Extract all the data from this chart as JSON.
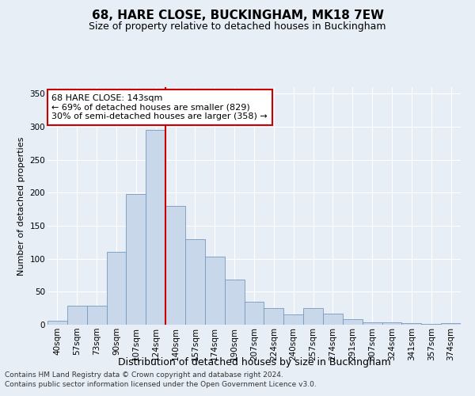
{
  "title1": "68, HARE CLOSE, BUCKINGHAM, MK18 7EW",
  "title2": "Size of property relative to detached houses in Buckingham",
  "xlabel": "Distribution of detached houses by size in Buckingham",
  "ylabel": "Number of detached properties",
  "categories": [
    "40sqm",
    "57sqm",
    "73sqm",
    "90sqm",
    "107sqm",
    "124sqm",
    "140sqm",
    "157sqm",
    "174sqm",
    "190sqm",
    "207sqm",
    "224sqm",
    "240sqm",
    "257sqm",
    "274sqm",
    "291sqm",
    "307sqm",
    "324sqm",
    "341sqm",
    "357sqm",
    "374sqm"
  ],
  "values": [
    6,
    29,
    29,
    110,
    198,
    295,
    180,
    130,
    103,
    68,
    35,
    25,
    16,
    25,
    17,
    8,
    4,
    4,
    3,
    1,
    2
  ],
  "bar_color": "#c8d8ea",
  "bar_edge_color": "#7799bb",
  "vline_index": 6,
  "vline_color": "#cc0000",
  "annotation_line1": "68 HARE CLOSE: 143sqm",
  "annotation_line2": "← 69% of detached houses are smaller (829)",
  "annotation_line3": "30% of semi-detached houses are larger (358) →",
  "annotation_box_facecolor": "#ffffff",
  "annotation_box_edgecolor": "#cc0000",
  "ylim": [
    0,
    360
  ],
  "yticks": [
    0,
    50,
    100,
    150,
    200,
    250,
    300,
    350
  ],
  "bg_color": "#e8eef6",
  "plot_bg": "#e8eef6",
  "footer1": "Contains HM Land Registry data © Crown copyright and database right 2024.",
  "footer2": "Contains public sector information licensed under the Open Government Licence v3.0.",
  "title1_fontsize": 11,
  "title2_fontsize": 9,
  "xlabel_fontsize": 9,
  "ylabel_fontsize": 8,
  "tick_fontsize": 7.5,
  "annotation_fontsize": 8,
  "footer_fontsize": 6.5
}
